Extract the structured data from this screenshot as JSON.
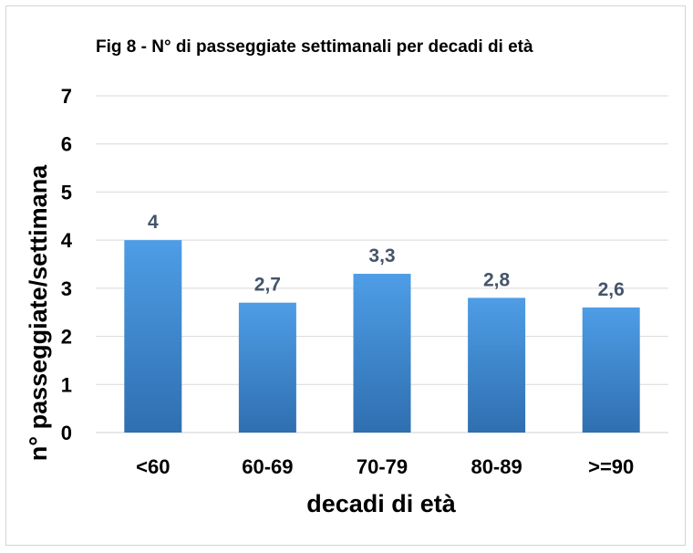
{
  "chart_data": {
    "type": "bar",
    "title": "Fig 8 - N° di passeggiate settimanali per decadi di età",
    "xlabel": "decadi di età",
    "ylabel": "n° passeggiate/settimana",
    "categories": [
      "<60",
      "60-69",
      "70-79",
      "80-89",
      ">=90"
    ],
    "values": [
      4,
      2.7,
      3.3,
      2.8,
      2.6
    ],
    "data_labels": [
      "4",
      "2,7",
      "3,3",
      "2,8",
      "2,6"
    ],
    "y_ticks": [
      "0",
      "1",
      "2",
      "3",
      "4",
      "5",
      "6",
      "7"
    ],
    "ylim": [
      0,
      7
    ],
    "grid": true,
    "legend": "none",
    "colors": {
      "bar_top": "#4e9de6",
      "bar_bottom": "#2f6fb0",
      "data_label": "#44546a",
      "grid": "#d9d9d9"
    }
  }
}
